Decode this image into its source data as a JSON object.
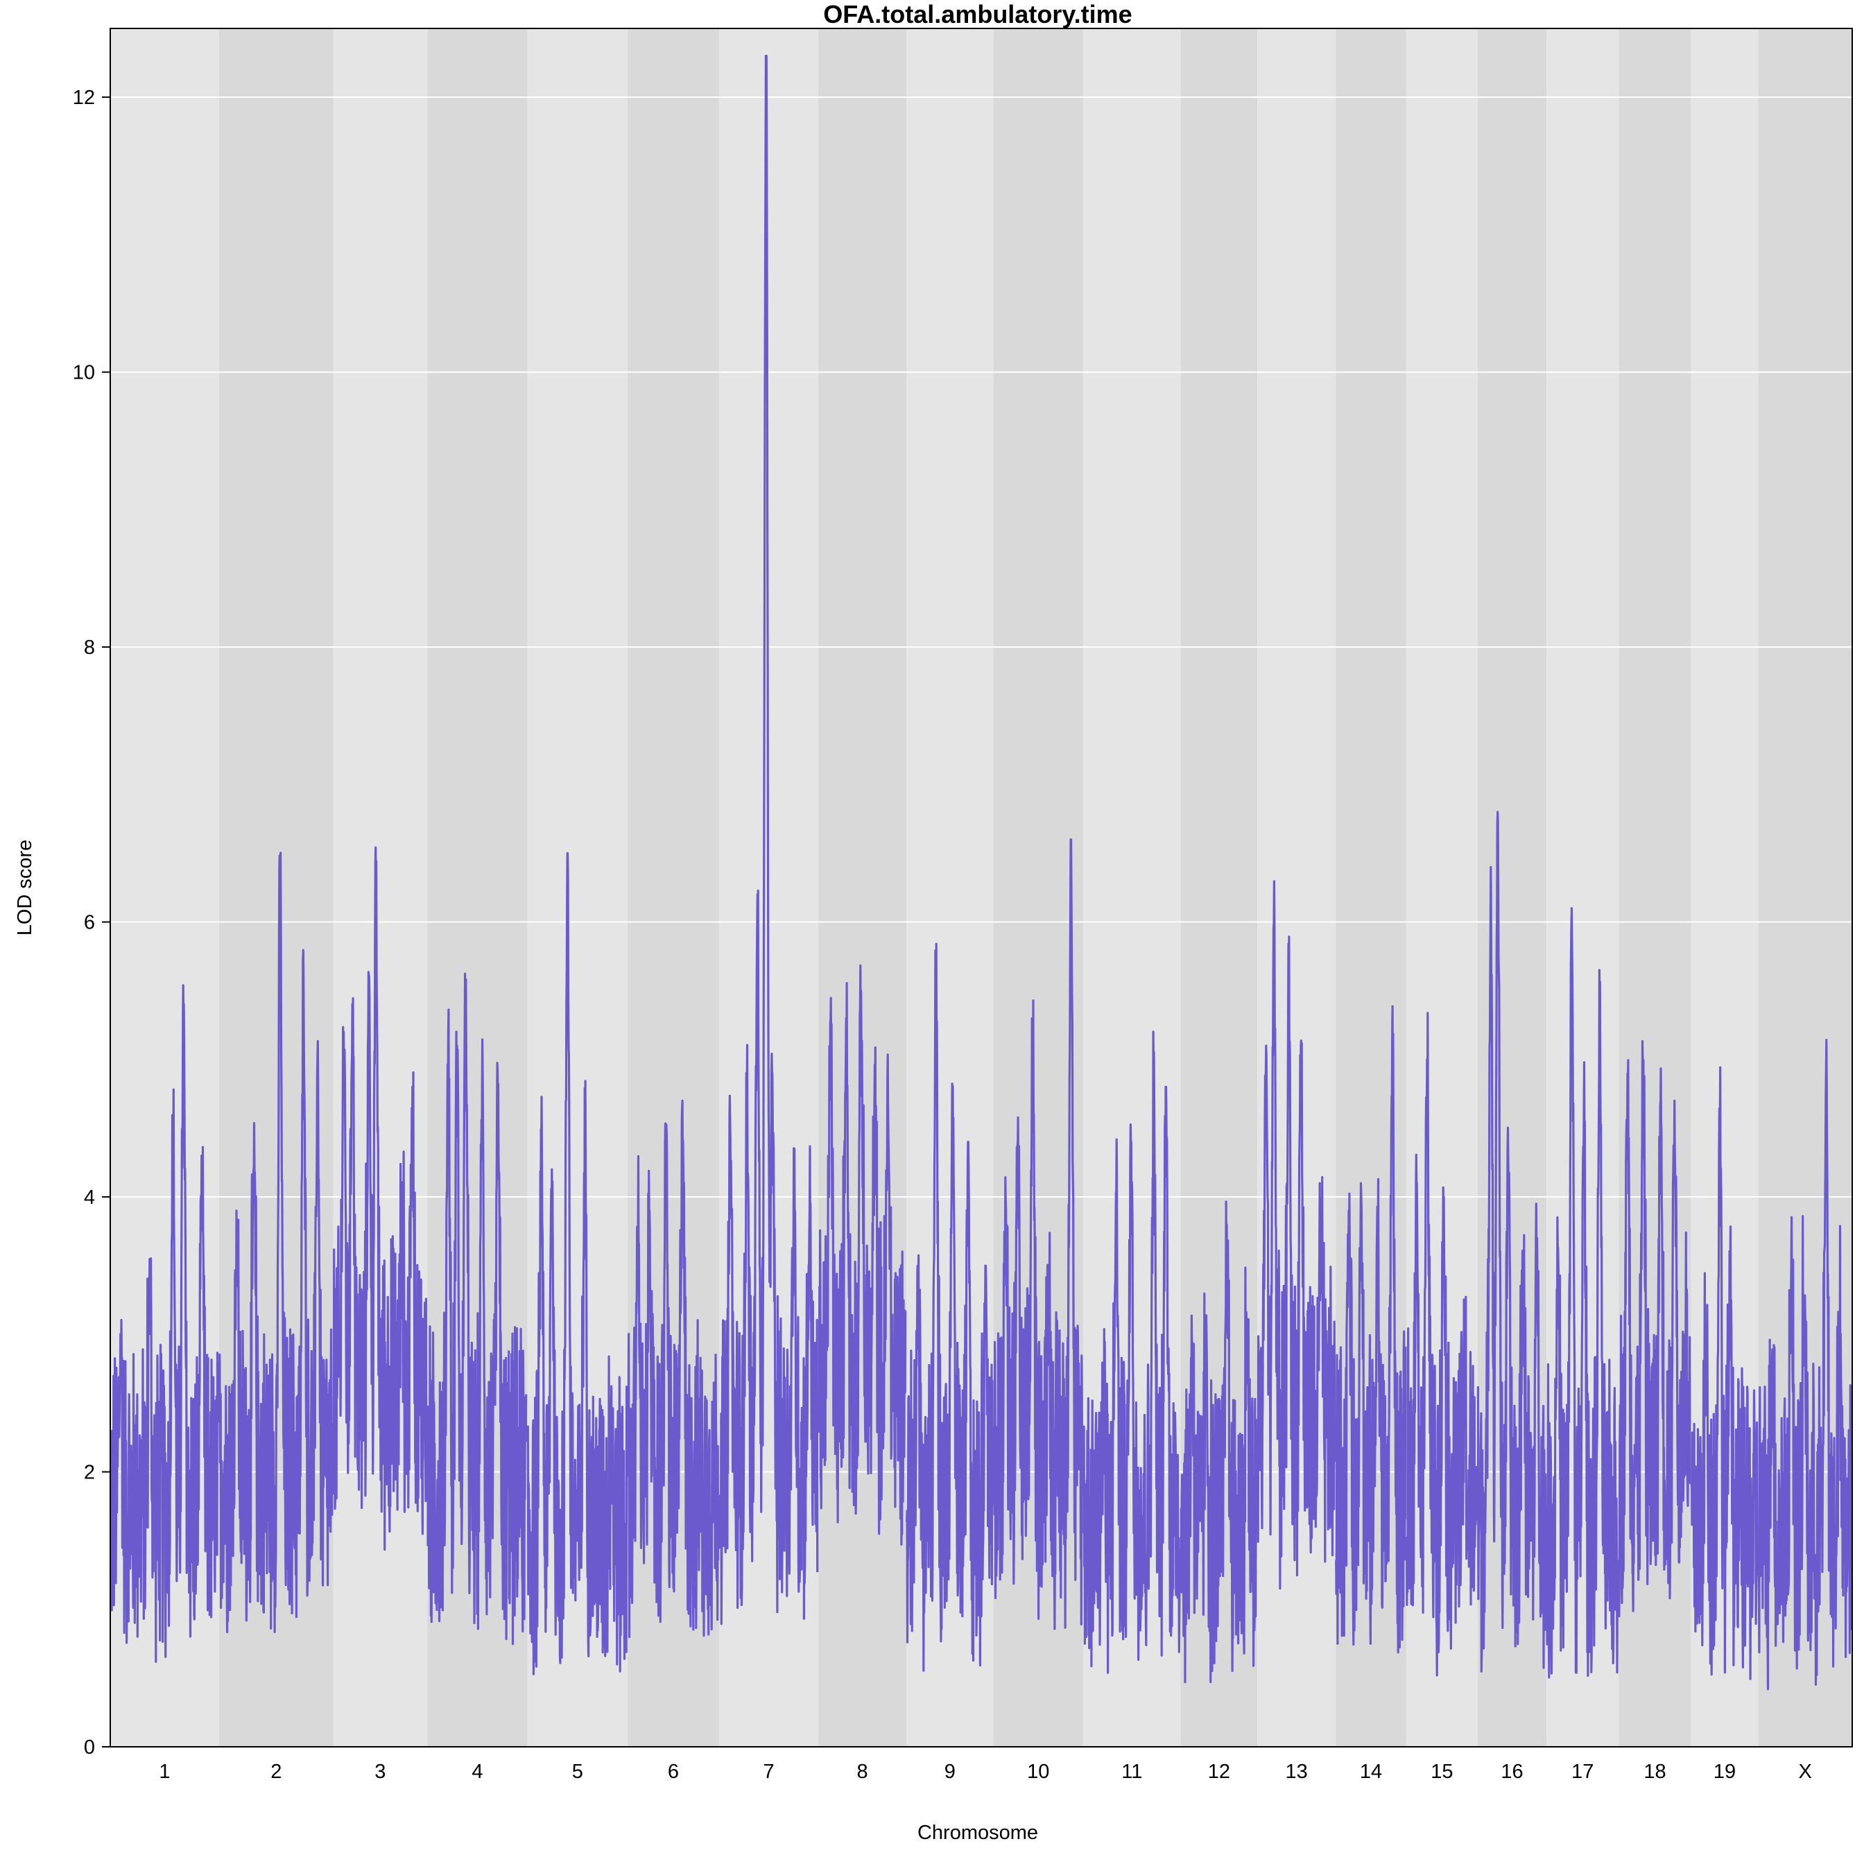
{
  "chart_data": {
    "type": "line",
    "title": "OFA.total.ambulatory.time",
    "xlabel": "Chromosome",
    "ylabel": "LOD score",
    "ylim": [
      0,
      12.5
    ],
    "yticks": [
      0,
      2,
      4,
      6,
      8,
      10,
      12
    ],
    "grid": "horizontal",
    "band_colors": [
      "#e5e5e5",
      "#d9d9d9"
    ],
    "gridline_color": "#ffffff",
    "line_color": "#6a5acd",
    "chromosomes": [
      {
        "name": "1",
        "start": 0.0,
        "end": 1.25,
        "baseline": 1.8,
        "peaks": [
          [
            0.12,
            2.9
          ],
          [
            0.45,
            3.3
          ],
          [
            0.72,
            4.5
          ],
          [
            0.84,
            5.3
          ],
          [
            1.05,
            4.3
          ]
        ]
      },
      {
        "name": "2",
        "start": 1.25,
        "end": 2.56,
        "baseline": 2.0,
        "peaks": [
          [
            1.45,
            3.9
          ],
          [
            1.65,
            4.2
          ],
          [
            1.95,
            6.3
          ],
          [
            2.22,
            5.6
          ],
          [
            2.38,
            5.0
          ]
        ]
      },
      {
        "name": "3",
        "start": 2.56,
        "end": 3.64,
        "baseline": 2.6,
        "peaks": [
          [
            2.68,
            5.2
          ],
          [
            2.78,
            5.4
          ],
          [
            2.97,
            5.4
          ],
          [
            3.05,
            6.2
          ],
          [
            3.35,
            3.7
          ],
          [
            3.47,
            4.8
          ]
        ]
      },
      {
        "name": "4",
        "start": 3.64,
        "end": 4.79,
        "baseline": 1.9,
        "peaks": [
          [
            3.88,
            5.2
          ],
          [
            3.98,
            5.1
          ],
          [
            4.08,
            5.5
          ],
          [
            4.27,
            4.8
          ],
          [
            4.45,
            4.7
          ]
        ]
      },
      {
        "name": "5",
        "start": 4.79,
        "end": 5.94,
        "baseline": 1.6,
        "peaks": [
          [
            4.95,
            4.4
          ],
          [
            5.07,
            4.2
          ],
          [
            5.25,
            6.5
          ],
          [
            5.45,
            4.4
          ],
          [
            5.75,
            2.4
          ]
        ]
      },
      {
        "name": "6",
        "start": 5.94,
        "end": 6.99,
        "baseline": 1.9,
        "peaks": [
          [
            6.06,
            3.8
          ],
          [
            6.19,
            3.9
          ],
          [
            6.38,
            4.4
          ],
          [
            6.57,
            4.7
          ],
          [
            6.82,
            1.6
          ]
        ]
      },
      {
        "name": "7",
        "start": 6.99,
        "end": 8.13,
        "baseline": 2.1,
        "peaks": [
          [
            7.12,
            4.4
          ],
          [
            7.31,
            4.7
          ],
          [
            7.43,
            6.2
          ],
          [
            7.53,
            12.3
          ],
          [
            7.6,
            4.9
          ],
          [
            7.85,
            4.0
          ],
          [
            8.03,
            3.9
          ]
        ]
      },
      {
        "name": "8",
        "start": 8.13,
        "end": 9.14,
        "baseline": 2.7,
        "peaks": [
          [
            8.27,
            5.3
          ],
          [
            8.45,
            5.3
          ],
          [
            8.62,
            5.5
          ],
          [
            8.78,
            4.7
          ],
          [
            8.93,
            4.7
          ]
        ]
      },
      {
        "name": "9",
        "start": 9.14,
        "end": 10.14,
        "baseline": 1.8,
        "peaks": [
          [
            9.27,
            3.5
          ],
          [
            9.48,
            5.6
          ],
          [
            9.67,
            4.6
          ],
          [
            9.85,
            4.4
          ],
          [
            10.05,
            3.5
          ]
        ]
      },
      {
        "name": "10",
        "start": 10.14,
        "end": 11.17,
        "baseline": 2.1,
        "peaks": [
          [
            10.28,
            4.0
          ],
          [
            10.42,
            4.4
          ],
          [
            10.59,
            5.3
          ],
          [
            10.77,
            3.3
          ],
          [
            11.03,
            6.6
          ]
        ]
      },
      {
        "name": "11",
        "start": 11.17,
        "end": 12.29,
        "baseline": 1.7,
        "peaks": [
          [
            11.4,
            2.4
          ],
          [
            11.55,
            4.0
          ],
          [
            11.72,
            4.4
          ],
          [
            11.98,
            4.9
          ],
          [
            12.12,
            4.8
          ]
        ]
      },
      {
        "name": "12",
        "start": 12.29,
        "end": 13.17,
        "baseline": 1.6,
        "peaks": [
          [
            12.42,
            2.9
          ],
          [
            12.58,
            2.8
          ],
          [
            12.82,
            3.8
          ],
          [
            13.05,
            3.0
          ]
        ]
      },
      {
        "name": "13",
        "start": 13.17,
        "end": 14.07,
        "baseline": 2.3,
        "peaks": [
          [
            13.27,
            5.1
          ],
          [
            13.36,
            6.0
          ],
          [
            13.53,
            5.5
          ],
          [
            13.67,
            5.1
          ],
          [
            13.9,
            3.6
          ]
        ]
      },
      {
        "name": "14",
        "start": 14.07,
        "end": 14.88,
        "baseline": 1.8,
        "peaks": [
          [
            14.22,
            3.9
          ],
          [
            14.36,
            4.1
          ],
          [
            14.55,
            3.9
          ],
          [
            14.72,
            5.2
          ]
        ]
      },
      {
        "name": "15",
        "start": 14.88,
        "end": 15.7,
        "baseline": 1.8,
        "peaks": [
          [
            15.0,
            4.1
          ],
          [
            15.12,
            5.0
          ],
          [
            15.31,
            4.0
          ],
          [
            15.55,
            2.5
          ]
        ]
      },
      {
        "name": "16",
        "start": 15.7,
        "end": 16.49,
        "baseline": 1.7,
        "peaks": [
          [
            15.85,
            6.4
          ],
          [
            15.93,
            6.8
          ],
          [
            16.05,
            4.3
          ],
          [
            16.22,
            3.6
          ],
          [
            16.38,
            3.7
          ]
        ]
      },
      {
        "name": "17",
        "start": 16.49,
        "end": 17.32,
        "baseline": 1.6,
        "peaks": [
          [
            16.62,
            3.6
          ],
          [
            16.78,
            6.1
          ],
          [
            16.92,
            4.6
          ],
          [
            17.1,
            5.3
          ]
        ]
      },
      {
        "name": "18",
        "start": 17.32,
        "end": 18.15,
        "baseline": 2.1,
        "peaks": [
          [
            17.42,
            4.9
          ],
          [
            17.6,
            5.0
          ],
          [
            17.8,
            4.7
          ],
          [
            17.96,
            4.7
          ],
          [
            18.08,
            3.0
          ]
        ]
      },
      {
        "name": "19",
        "start": 18.15,
        "end": 18.92,
        "baseline": 1.6,
        "peaks": [
          [
            18.32,
            2.8
          ],
          [
            18.48,
            4.6
          ],
          [
            18.6,
            3.4
          ],
          [
            18.78,
            1.6
          ]
        ]
      },
      {
        "name": "X",
        "start": 18.92,
        "end": 20.0,
        "baseline": 1.6,
        "peaks": [
          [
            19.08,
            2.8
          ],
          [
            19.3,
            3.5
          ],
          [
            19.45,
            3.2
          ],
          [
            19.7,
            4.9
          ],
          [
            19.85,
            2.8
          ]
        ]
      }
    ]
  }
}
